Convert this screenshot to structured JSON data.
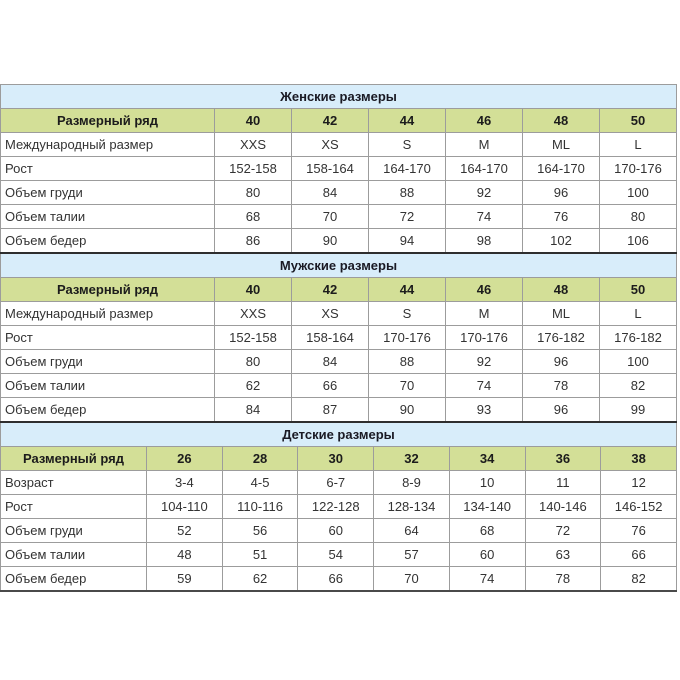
{
  "colors": {
    "section_title_bg": "#d8edfa",
    "size_header_bg": "#d3df97",
    "cell_border": "#9c9c9c",
    "section_divider": "#2e2e2e",
    "body_text": "#333333"
  },
  "chart_data": [
    {
      "type": "table",
      "id": "women",
      "title": "Женские размеры",
      "columns": [
        "Размерный ряд",
        "40",
        "42",
        "44",
        "46",
        "48",
        "50"
      ],
      "rows": [
        [
          "Международный размер",
          "XXS",
          "XS",
          "S",
          "M",
          "ML",
          "L"
        ],
        [
          "Рост",
          "152-158",
          "158-164",
          "164-170",
          "164-170",
          "164-170",
          "170-176"
        ],
        [
          "Объем груди",
          "80",
          "84",
          "88",
          "92",
          "96",
          "100"
        ],
        [
          "Объем талии",
          "68",
          "70",
          "72",
          "74",
          "76",
          "80"
        ],
        [
          "Объем бедер",
          "86",
          "90",
          "94",
          "98",
          "102",
          "106"
        ]
      ]
    },
    {
      "type": "table",
      "id": "men",
      "title": "Мужские размеры",
      "columns": [
        "Размерный ряд",
        "40",
        "42",
        "44",
        "46",
        "48",
        "50"
      ],
      "rows": [
        [
          "Международный размер",
          "XXS",
          "XS",
          "S",
          "M",
          "ML",
          "L"
        ],
        [
          "Рост",
          "152-158",
          "158-164",
          "170-176",
          "170-176",
          "176-182",
          "176-182"
        ],
        [
          "Объем груди",
          "80",
          "84",
          "88",
          "92",
          "96",
          "100"
        ],
        [
          "Объем талии",
          "62",
          "66",
          "70",
          "74",
          "78",
          "82"
        ],
        [
          "Объем бедер",
          "84",
          "87",
          "90",
          "93",
          "96",
          "99"
        ]
      ]
    },
    {
      "type": "table",
      "id": "kids",
      "title": "Детские размеры",
      "columns": [
        "Размерный ряд",
        "26",
        "28",
        "30",
        "32",
        "34",
        "36",
        "38"
      ],
      "rows": [
        [
          "Возраст",
          "3-4",
          "4-5",
          "6-7",
          "8-9",
          "10",
          "11",
          "12"
        ],
        [
          "Рост",
          "104-110",
          "110-116",
          "122-128",
          "128-134",
          "134-140",
          "140-146",
          "146-152"
        ],
        [
          "Объем груди",
          "52",
          "56",
          "60",
          "64",
          "68",
          "72",
          "76"
        ],
        [
          "Объем талии",
          "48",
          "51",
          "54",
          "57",
          "60",
          "63",
          "66"
        ],
        [
          "Объем бедер",
          "59",
          "62",
          "66",
          "70",
          "74",
          "78",
          "82"
        ]
      ]
    }
  ]
}
